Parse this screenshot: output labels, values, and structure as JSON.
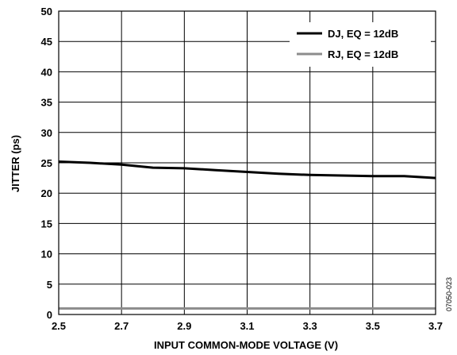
{
  "chart_data": {
    "type": "line",
    "title": "",
    "xlabel": "INPUT COMMON-MODE VOLTAGE  (V)",
    "ylabel": "JITTER (ps)",
    "xlim": [
      2.5,
      3.7
    ],
    "ylim": [
      0,
      50
    ],
    "x_ticks": [
      "2.5",
      "2.7",
      "2.9",
      "3.1",
      "3.3",
      "3.5",
      "3.7"
    ],
    "y_ticks": [
      "0",
      "5",
      "10",
      "15",
      "20",
      "25",
      "30",
      "35",
      "40",
      "45",
      "50"
    ],
    "grid": true,
    "legend_position": "top-right",
    "series": [
      {
        "name": "DJ, EQ = 12dB",
        "color": "#000000",
        "x": [
          2.5,
          2.6,
          2.7,
          2.8,
          2.9,
          3.0,
          3.1,
          3.2,
          3.3,
          3.4,
          3.5,
          3.6,
          3.7
        ],
        "y": [
          25.2,
          25.0,
          24.7,
          24.2,
          24.1,
          23.8,
          23.5,
          23.2,
          23.0,
          22.9,
          22.8,
          22.8,
          22.5
        ]
      },
      {
        "name": "RJ, EQ = 12dB",
        "color": "#8c8c8c",
        "x": [
          2.5,
          2.7,
          2.9,
          3.1,
          3.3,
          3.5,
          3.7
        ],
        "y": [
          1.0,
          1.0,
          1.0,
          1.0,
          1.0,
          1.0,
          1.0
        ]
      }
    ],
    "figure_id": "07050-023"
  }
}
